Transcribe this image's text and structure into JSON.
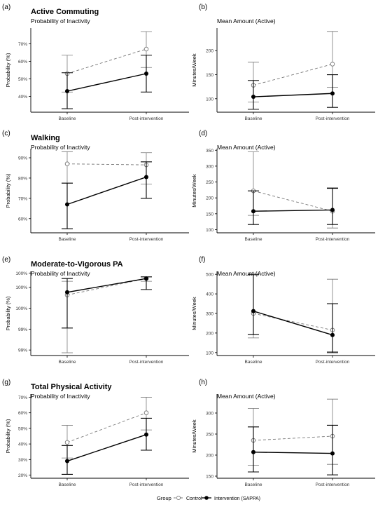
{
  "legend": {
    "title": "Group",
    "items": [
      {
        "label": "Control",
        "style": "dashed-open",
        "color": "#777777"
      },
      {
        "label": "Intervention (SAPPA)",
        "style": "solid-filled",
        "color": "#000000"
      }
    ]
  },
  "colors": {
    "control": "#777777",
    "intervention": "#000000",
    "axis": "#000000"
  },
  "chart_data": [
    {
      "panel": "(a)",
      "type": "line",
      "section_title": "Active Commuting",
      "subtitle": "Probability of Inactivity",
      "ylabel": "Probability (%)",
      "xlabel": "",
      "categories": [
        "Baseline",
        "Post-intervention"
      ],
      "ylim": [
        31,
        79
      ],
      "yticks": [
        40,
        50,
        60,
        70
      ],
      "yticklabels": [
        "40%",
        "50%",
        "60%",
        "70%"
      ],
      "grid": false,
      "series": [
        {
          "name": "Control",
          "values": [
            53,
            67
          ],
          "lower": [
            42.5,
            56.5
          ],
          "upper": [
            63.5,
            77
          ]
        },
        {
          "name": "Intervention (SAPPA)",
          "values": [
            43,
            53
          ],
          "lower": [
            33,
            42.5
          ],
          "upper": [
            53.5,
            63.5
          ]
        }
      ]
    },
    {
      "panel": "(b)",
      "type": "line",
      "section_title": "",
      "subtitle": "Mean Amount (Active)",
      "ylabel": "Minutes/Week",
      "xlabel": "",
      "categories": [
        "Baseline",
        "Post-intervention"
      ],
      "ylim": [
        72,
        247
      ],
      "yticks": [
        100,
        150,
        200
      ],
      "yticklabels": [
        "100",
        "150",
        "200"
      ],
      "grid": false,
      "series": [
        {
          "name": "Control",
          "values": [
            128,
            172
          ],
          "lower": [
            93,
            124
          ],
          "upper": [
            176,
            240
          ]
        },
        {
          "name": "Intervention (SAPPA)",
          "values": [
            104,
            111
          ],
          "lower": [
            78,
            82
          ],
          "upper": [
            138,
            150
          ]
        }
      ]
    },
    {
      "panel": "(c)",
      "type": "line",
      "section_title": "Walking",
      "subtitle": "Probability of Inactivity",
      "ylabel": "Probability (%)",
      "xlabel": "",
      "categories": [
        "Baseline",
        "Post-intervention"
      ],
      "ylim": [
        53,
        94.5
      ],
      "yticks": [
        60,
        70,
        80,
        90
      ],
      "yticklabels": [
        "60%",
        "70%",
        "80%",
        "90%"
      ],
      "grid": false,
      "series": [
        {
          "name": "Control",
          "values": [
            87,
            86.5
          ],
          "lower": [
            77.5,
            77
          ],
          "upper": [
            93,
            92.5
          ]
        },
        {
          "name": "Intervention (SAPPA)",
          "values": [
            67,
            80.5
          ],
          "lower": [
            55,
            70
          ],
          "upper": [
            77.5,
            88
          ]
        }
      ]
    },
    {
      "panel": "(d)",
      "type": "line",
      "section_title": "",
      "subtitle": "Mean Amount (Active)",
      "ylabel": "Minutes/Week",
      "xlabel": "",
      "categories": [
        "Baseline",
        "Post-intervention"
      ],
      "ylim": [
        90,
        355
      ],
      "yticks": [
        100,
        150,
        200,
        250,
        300,
        350
      ],
      "yticklabels": [
        "100",
        "150",
        "200",
        "250",
        "300",
        "350"
      ],
      "grid": false,
      "series": [
        {
          "name": "Control",
          "values": [
            222,
            158
          ],
          "lower": [
            145,
            105
          ],
          "upper": [
            345,
            232
          ]
        },
        {
          "name": "Intervention (SAPPA)",
          "values": [
            158,
            162
          ],
          "lower": [
            116,
            116
          ],
          "upper": [
            222,
            230
          ]
        }
      ]
    },
    {
      "panel": "(e)",
      "type": "line",
      "section_title": "Moderate-to-Vigorous PA",
      "subtitle": "Probability of Inactivity",
      "ylabel": "Probability (%)",
      "xlabel": "",
      "categories": [
        "Baseline",
        "Post-intervention"
      ],
      "ylim": [
        98.9,
        100.43
      ],
      "yticks": [
        99.0,
        99.38,
        99.76,
        100.14,
        100.4
      ],
      "yticklabels": [
        "99%",
        "99%",
        "100%",
        "100%",
        "100%"
      ],
      "grid": false,
      "series": [
        {
          "name": "Control",
          "values": [
            100.0,
            100.3
          ],
          "lower": [
            98.95,
            100.25
          ],
          "upper": [
            100.25,
            100.33
          ]
        },
        {
          "name": "Intervention (SAPPA)",
          "values": [
            100.05,
            100.3
          ],
          "lower": [
            99.4,
            100.1
          ],
          "upper": [
            100.3,
            100.33
          ]
        }
      ]
    },
    {
      "panel": "(f)",
      "type": "line",
      "section_title": "",
      "subtitle": "Mean Amount (Active)",
      "ylabel": "Minutes/Week",
      "xlabel": "",
      "categories": [
        "Baseline",
        "Post-intervention"
      ],
      "ylim": [
        85,
        515
      ],
      "yticks": [
        100,
        200,
        300,
        400,
        500
      ],
      "yticklabels": [
        "100",
        "200",
        "300",
        "400",
        "500"
      ],
      "grid": false,
      "series": [
        {
          "name": "Control",
          "values": [
            300,
            215
          ],
          "lower": [
            175,
            105
          ],
          "upper": [
            505,
            475
          ]
        },
        {
          "name": "Intervention (SAPPA)",
          "values": [
            312,
            190
          ],
          "lower": [
            192,
            100
          ],
          "upper": [
            498,
            350
          ]
        }
      ]
    },
    {
      "panel": "(g)",
      "type": "line",
      "section_title": "Total Physical Activity",
      "subtitle": "Probability of Inactivity",
      "ylabel": "Probability (%)",
      "xlabel": "",
      "categories": [
        "Baseline",
        "Post-intervention"
      ],
      "ylim": [
        18,
        72
      ],
      "yticks": [
        20,
        30,
        40,
        50,
        60,
        70
      ],
      "yticklabels": [
        "20%",
        "30%",
        "40%",
        "50%",
        "60%",
        "70%"
      ],
      "grid": false,
      "series": [
        {
          "name": "Control",
          "values": [
            41,
            60
          ],
          "lower": [
            31,
            49
          ],
          "upper": [
            52,
            70
          ]
        },
        {
          "name": "Intervention (SAPPA)",
          "values": [
            29,
            46
          ],
          "lower": [
            20.5,
            36
          ],
          "upper": [
            39,
            56.5
          ]
        }
      ]
    },
    {
      "panel": "(h)",
      "type": "line",
      "section_title": "",
      "subtitle": "Mean Amount (Active)",
      "ylabel": "Minutes/Week",
      "xlabel": "",
      "categories": [
        "Baseline",
        "Post-intervention"
      ],
      "ylim": [
        145,
        345
      ],
      "yticks": [
        150,
        200,
        250,
        300
      ],
      "yticklabels": [
        "150",
        "200",
        "250",
        "300"
      ],
      "grid": false,
      "series": [
        {
          "name": "Control",
          "values": [
            235,
            245
          ],
          "lower": [
            176,
            178
          ],
          "upper": [
            311,
            333
          ]
        },
        {
          "name": "Intervention (SAPPA)",
          "values": [
            207,
            204
          ],
          "lower": [
            160,
            153
          ],
          "upper": [
            267,
            271
          ]
        }
      ]
    }
  ]
}
